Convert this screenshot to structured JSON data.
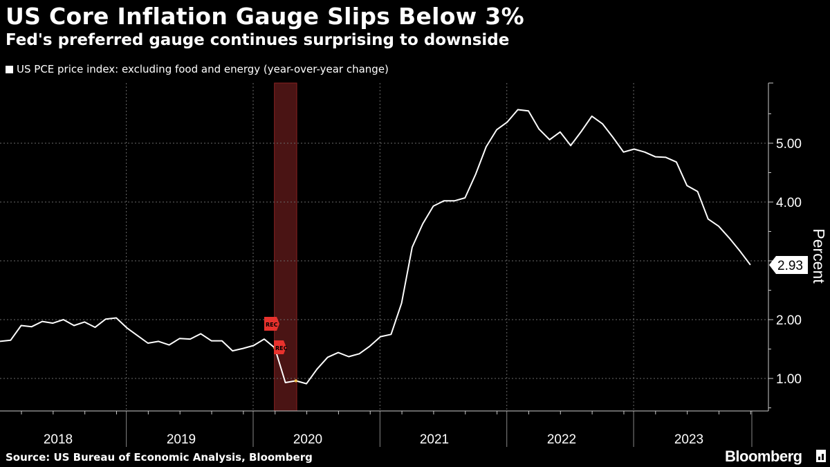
{
  "header": {
    "title": "US Core Inflation Gauge Slips Below 3%",
    "subtitle": "Fed's preferred gauge continues surprising to downside"
  },
  "legend": {
    "label": "US PCE price index: excluding food and energy (year-over-year change)"
  },
  "footer": {
    "source": "Source: US Bureau of Economic Analysis, Bloomberg",
    "brand": "Bloomberg"
  },
  "colors": {
    "background": "#000000",
    "line": "#ffffff",
    "recession": "#4a1414",
    "recession_tag": "#e8322d",
    "grid": "#6b6b6b"
  },
  "chart_data": {
    "type": "line",
    "title": "US Core Inflation Gauge Slips Below 3%",
    "subtitle": "Fed's preferred gauge continues surprising to downside",
    "ylabel": "Percent",
    "ylim": [
      0.45,
      5.95
    ],
    "yticks": [
      1.0,
      2.0,
      3.0,
      4.0,
      5.0
    ],
    "ytick_labels": [
      "1.00",
      "2.00",
      "",
      "4.00",
      "5.00"
    ],
    "x_start": "2017-12",
    "x_end": "2023-12",
    "x_labels": [
      "2018",
      "2019",
      "2020",
      "2021",
      "2022",
      "2023"
    ],
    "last_value_label": "2.93",
    "recession": {
      "start_index": 26,
      "end_index": 28,
      "tags": [
        "REC",
        "REC"
      ]
    },
    "series": [
      {
        "name": "US PCE price index: excluding food and energy (year-over-year change)",
        "values": [
          1.63,
          1.65,
          1.9,
          1.88,
          1.97,
          1.94,
          2.0,
          1.9,
          1.96,
          1.87,
          2.01,
          2.03,
          1.86,
          1.73,
          1.6,
          1.63,
          1.57,
          1.68,
          1.67,
          1.76,
          1.64,
          1.64,
          1.47,
          1.51,
          1.56,
          1.67,
          1.52,
          0.93,
          0.96,
          0.91,
          1.16,
          1.36,
          1.44,
          1.37,
          1.42,
          1.55,
          1.71,
          1.75,
          2.28,
          3.23,
          3.63,
          3.93,
          4.02,
          4.02,
          4.07,
          4.47,
          4.94,
          5.23,
          5.36,
          5.57,
          5.55,
          5.24,
          5.06,
          5.19,
          4.96,
          5.2,
          5.46,
          5.33,
          5.1,
          4.85,
          4.9,
          4.85,
          4.77,
          4.76,
          4.68,
          4.28,
          4.18,
          3.71,
          3.59,
          3.39,
          3.17,
          2.93
        ]
      }
    ]
  }
}
